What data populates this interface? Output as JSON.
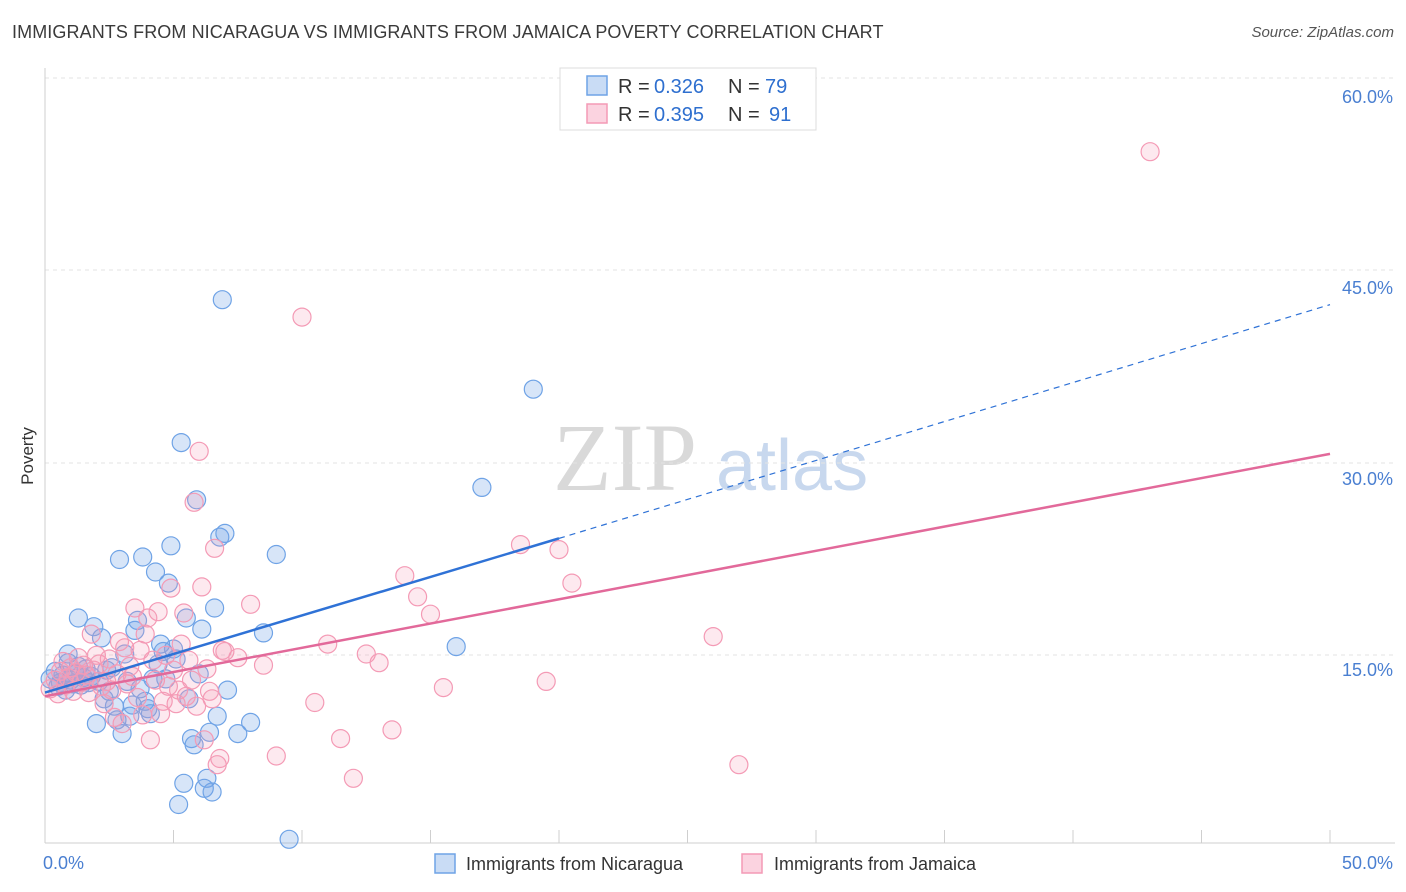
{
  "title": "IMMIGRANTS FROM NICARAGUA VS IMMIGRANTS FROM JAMAICA POVERTY CORRELATION CHART",
  "source": "Source: ZipAtlas.com",
  "watermark": {
    "zip": "ZIP",
    "atlas": "atlas"
  },
  "colors": {
    "nicaragua": "#6fa3e6",
    "nicaragua_line": "#2f72d6",
    "jamaica": "#f49ab5",
    "jamaica_line": "#e2699a",
    "tick": "#4a7fd1"
  },
  "legend": {
    "rows": [
      {
        "r_label": "R =",
        "r_value": "0.326",
        "n_label": "N =",
        "n_value": "79"
      },
      {
        "r_label": "R =",
        "r_value": "0.395",
        "n_label": "N =",
        "n_value": "91"
      }
    ]
  },
  "chart_data": {
    "type": "scatter",
    "title": "IMMIGRANTS FROM NICARAGUA VS IMMIGRANTS FROM JAMAICA POVERTY CORRELATION CHART",
    "xlabel": "",
    "ylabel": "Poverty",
    "xlim": [
      0,
      50
    ],
    "ylim": [
      0,
      60
    ],
    "y_ticks": [
      15,
      30,
      45,
      60
    ],
    "y_tick_labels": [
      "15.0%",
      "30.0%",
      "45.0%",
      "60.0%"
    ],
    "x_tick_labels": [
      "0.0%",
      "50.0%"
    ],
    "legend_position": "top-center",
    "series": [
      {
        "name": "Immigrants from Nicaragua",
        "r": 0.326,
        "n": 79,
        "trend": {
          "x0": 0,
          "y0": 12.1,
          "x1": 20,
          "y1": 24.5,
          "dashed_to_x": 50,
          "dashed_to_y": 43.3
        },
        "points": [
          [
            0.2,
            13.2
          ],
          [
            0.4,
            13.8
          ],
          [
            0.5,
            12.6
          ],
          [
            0.6,
            12.9
          ],
          [
            0.7,
            13.5
          ],
          [
            0.8,
            12.3
          ],
          [
            0.9,
            14.5
          ],
          [
            1.0,
            13.1
          ],
          [
            1.1,
            12.8
          ],
          [
            1.2,
            13.6
          ],
          [
            1.3,
            14.2
          ],
          [
            1.4,
            12.7
          ],
          [
            1.5,
            13.3
          ],
          [
            1.6,
            14.0
          ],
          [
            1.7,
            12.9
          ],
          [
            1.8,
            13.4
          ],
          [
            1.9,
            17.4
          ],
          [
            2.0,
            9.6
          ],
          [
            2.1,
            13.0
          ],
          [
            2.2,
            16.5
          ],
          [
            2.3,
            11.6
          ],
          [
            2.4,
            13.9
          ],
          [
            2.5,
            12.2
          ],
          [
            2.6,
            14.1
          ],
          [
            2.7,
            11.0
          ],
          [
            2.8,
            9.9
          ],
          [
            2.9,
            22.8
          ],
          [
            3.0,
            8.8
          ],
          [
            3.1,
            15.2
          ],
          [
            3.2,
            13.0
          ],
          [
            3.3,
            10.2
          ],
          [
            3.4,
            11.1
          ],
          [
            3.5,
            17.1
          ],
          [
            3.6,
            17.9
          ],
          [
            3.7,
            12.4
          ],
          [
            3.8,
            23.0
          ],
          [
            3.9,
            11.4
          ],
          [
            4.0,
            10.8
          ],
          [
            4.1,
            10.4
          ],
          [
            4.2,
            13.2
          ],
          [
            4.3,
            21.8
          ],
          [
            4.4,
            14.4
          ],
          [
            4.5,
            16.0
          ],
          [
            4.6,
            15.4
          ],
          [
            4.7,
            13.2
          ],
          [
            4.8,
            20.9
          ],
          [
            4.9,
            23.9
          ],
          [
            5.0,
            15.6
          ],
          [
            5.1,
            14.8
          ],
          [
            5.2,
            3.1
          ],
          [
            5.3,
            32.2
          ],
          [
            5.4,
            4.8
          ],
          [
            5.5,
            18.1
          ],
          [
            5.6,
            11.6
          ],
          [
            5.7,
            8.4
          ],
          [
            5.8,
            7.9
          ],
          [
            5.9,
            27.6
          ],
          [
            6.0,
            13.6
          ],
          [
            6.1,
            17.2
          ],
          [
            6.2,
            4.4
          ],
          [
            6.3,
            5.2
          ],
          [
            6.4,
            8.9
          ],
          [
            6.5,
            4.1
          ],
          [
            6.6,
            18.9
          ],
          [
            6.7,
            10.2
          ],
          [
            6.8,
            24.6
          ],
          [
            6.9,
            43.7
          ],
          [
            7.0,
            24.9
          ],
          [
            7.1,
            12.3
          ],
          [
            7.5,
            8.8
          ],
          [
            8.0,
            9.7
          ],
          [
            8.5,
            16.9
          ],
          [
            9.0,
            23.2
          ],
          [
            9.5,
            0.3
          ],
          [
            16.0,
            15.8
          ],
          [
            17.0,
            28.6
          ],
          [
            19.0,
            36.5
          ],
          [
            1.3,
            18.1
          ],
          [
            0.9,
            15.2
          ]
        ]
      },
      {
        "name": "Immigrants from Jamaica",
        "r": 0.395,
        "n": 91,
        "trend": {
          "x0": 0,
          "y0": 11.8,
          "x1": 50,
          "y1": 31.3
        },
        "points": [
          [
            0.2,
            12.4
          ],
          [
            0.4,
            13.1
          ],
          [
            0.5,
            12.0
          ],
          [
            0.6,
            13.8
          ],
          [
            0.7,
            14.6
          ],
          [
            0.8,
            12.7
          ],
          [
            0.9,
            13.3
          ],
          [
            1.0,
            14.1
          ],
          [
            1.1,
            12.2
          ],
          [
            1.2,
            13.7
          ],
          [
            1.3,
            14.9
          ],
          [
            1.4,
            12.9
          ],
          [
            1.5,
            14.3
          ],
          [
            1.6,
            13.5
          ],
          [
            1.7,
            12.1
          ],
          [
            1.8,
            16.8
          ],
          [
            1.9,
            13.9
          ],
          [
            2.0,
            15.1
          ],
          [
            2.1,
            14.4
          ],
          [
            2.2,
            12.6
          ],
          [
            2.3,
            11.2
          ],
          [
            2.4,
            13.0
          ],
          [
            2.5,
            14.8
          ],
          [
            2.6,
            12.3
          ],
          [
            2.7,
            10.1
          ],
          [
            2.8,
            13.6
          ],
          [
            2.9,
            16.2
          ],
          [
            3.0,
            9.6
          ],
          [
            3.1,
            15.7
          ],
          [
            3.2,
            12.8
          ],
          [
            3.3,
            14.2
          ],
          [
            3.4,
            13.4
          ],
          [
            3.5,
            18.9
          ],
          [
            3.6,
            11.7
          ],
          [
            3.7,
            15.5
          ],
          [
            3.8,
            10.3
          ],
          [
            3.9,
            16.8
          ],
          [
            4.0,
            18.1
          ],
          [
            4.1,
            8.3
          ],
          [
            4.2,
            14.7
          ],
          [
            4.3,
            13.1
          ],
          [
            4.4,
            18.6
          ],
          [
            4.5,
            10.4
          ],
          [
            4.6,
            11.4
          ],
          [
            4.7,
            15.1
          ],
          [
            4.8,
            12.6
          ],
          [
            4.9,
            20.5
          ],
          [
            5.0,
            13.9
          ],
          [
            5.1,
            11.2
          ],
          [
            5.2,
            12.3
          ],
          [
            5.3,
            16.0
          ],
          [
            5.4,
            18.5
          ],
          [
            5.5,
            11.8
          ],
          [
            5.6,
            14.7
          ],
          [
            5.7,
            13.1
          ],
          [
            5.8,
            27.4
          ],
          [
            5.9,
            11.0
          ],
          [
            6.0,
            31.5
          ],
          [
            6.1,
            20.6
          ],
          [
            6.2,
            8.3
          ],
          [
            6.3,
            14.0
          ],
          [
            6.4,
            12.2
          ],
          [
            6.5,
            11.6
          ],
          [
            6.6,
            23.7
          ],
          [
            6.7,
            6.3
          ],
          [
            6.8,
            6.8
          ],
          [
            6.9,
            15.5
          ],
          [
            7.0,
            15.4
          ],
          [
            7.5,
            14.9
          ],
          [
            8.0,
            19.2
          ],
          [
            8.5,
            14.3
          ],
          [
            9.0,
            7.0
          ],
          [
            10.0,
            42.3
          ],
          [
            10.5,
            11.3
          ],
          [
            11.0,
            16.0
          ],
          [
            11.5,
            8.4
          ],
          [
            12.0,
            5.2
          ],
          [
            12.5,
            15.2
          ],
          [
            13.0,
            14.5
          ],
          [
            13.5,
            9.1
          ],
          [
            14.0,
            21.5
          ],
          [
            14.5,
            19.8
          ],
          [
            15.0,
            18.4
          ],
          [
            15.5,
            12.5
          ],
          [
            18.5,
            24.0
          ],
          [
            19.5,
            13.0
          ],
          [
            20.0,
            23.6
          ],
          [
            20.5,
            20.9
          ],
          [
            26.0,
            16.6
          ],
          [
            27.0,
            6.3
          ],
          [
            43.0,
            55.6
          ]
        ]
      }
    ]
  }
}
